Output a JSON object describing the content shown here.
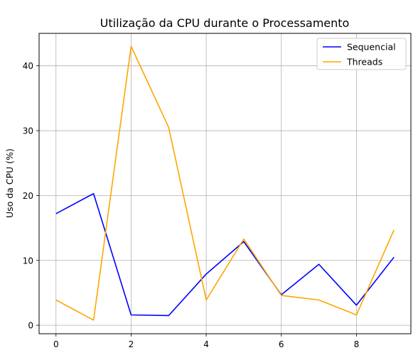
{
  "chart_data": {
    "type": "line",
    "title": "Utilização da CPU durante o Processamento",
    "xlabel": "",
    "ylabel": "Uso da CPU (%)",
    "x": [
      0,
      1,
      2,
      3,
      4,
      5,
      6,
      7,
      8,
      9
    ],
    "series": [
      {
        "name": "Sequencial",
        "color": "#0000ff",
        "values": [
          17.2,
          20.3,
          1.6,
          1.5,
          7.9,
          12.9,
          4.7,
          9.4,
          3.1,
          10.5
        ]
      },
      {
        "name": "Threads",
        "color": "#ffa500",
        "values": [
          3.9,
          0.8,
          43.0,
          30.5,
          3.9,
          13.3,
          4.6,
          3.9,
          1.6,
          14.7
        ]
      }
    ],
    "xlim": [
      -0.45,
      9.45
    ],
    "ylim": [
      -1.3,
      45.0
    ],
    "xticks": [
      0,
      2,
      4,
      6,
      8
    ],
    "yticks": [
      0,
      10,
      20,
      30,
      40
    ],
    "grid": true,
    "legend": "upper right",
    "grid_color": "#b0b0b0"
  }
}
